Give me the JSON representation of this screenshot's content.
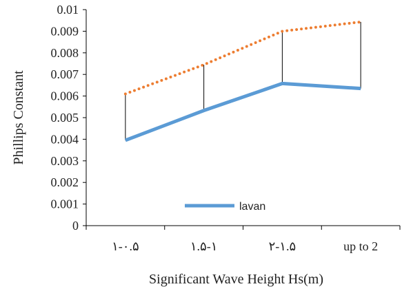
{
  "chart_data": {
    "type": "line",
    "categories": [
      "۱-۰.۵",
      "۱.۵-۱",
      "۲-۱.۵",
      "up to 2"
    ],
    "series": [
      {
        "name": "lavan",
        "values": [
          0.00395,
          0.00533,
          0.00658,
          0.00635
        ],
        "color": "#5b9bd5",
        "style": "solid"
      },
      {
        "name": "",
        "values": [
          0.0061,
          0.00745,
          0.009,
          0.00943
        ],
        "color": "#ed7d31",
        "style": "dotted"
      }
    ],
    "drop_lines": true,
    "title": "",
    "xlabel": "Significant Wave Height Hs(m)",
    "ylabel": "Phillips Constant",
    "ylim": [
      0,
      0.01
    ],
    "yticks": [
      "0",
      "0.001",
      "0.002",
      "0.003",
      "0.004",
      "0.005",
      "0.006",
      "0.007",
      "0.008",
      "0.009",
      "0.01"
    ],
    "legend": {
      "position": "bottom-left inside",
      "entries": [
        "lavan"
      ]
    },
    "grid": false
  }
}
